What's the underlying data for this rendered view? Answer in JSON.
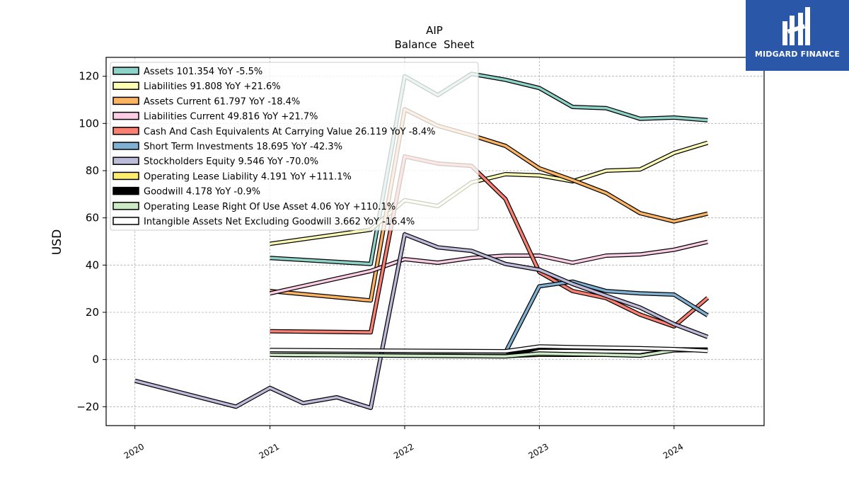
{
  "chart_data": {
    "type": "line",
    "title": "AIP",
    "subtitle": "Balance  Sheet",
    "ylabel": "USD",
    "xlabel": "",
    "x_ticks": [
      "2020",
      "2021",
      "2022",
      "2023",
      "2024"
    ],
    "y_ticks": [
      "−20",
      "0",
      "20",
      "40",
      "60",
      "80",
      "100",
      "120"
    ],
    "xlim": [
      "2019-10-15",
      "2024-09-01"
    ],
    "ylim": [
      -28,
      128
    ],
    "grid": true,
    "legend_position": "upper-left",
    "series": [
      {
        "name": "Assets  101.354 YoY -5.5%",
        "color": "#8dd3c7",
        "points": [
          [
            "2021-01-01",
            43
          ],
          [
            "2021-10-01",
            40.5
          ],
          [
            "2022-01-01",
            120
          ],
          [
            "2022-04-01",
            112
          ],
          [
            "2022-07-01",
            121
          ],
          [
            "2022-10-01",
            118.5
          ],
          [
            "2023-01-01",
            115
          ],
          [
            "2023-04-01",
            107
          ],
          [
            "2023-07-01",
            106.5
          ],
          [
            "2023-10-01",
            102
          ],
          [
            "2024-01-01",
            102.5
          ],
          [
            "2024-04-01",
            101.354
          ]
        ]
      },
      {
        "name": "Liabilities  91.808 YoY +21.6%",
        "color": "#ffffb3",
        "points": [
          [
            "2021-01-01",
            49
          ],
          [
            "2021-10-01",
            55
          ],
          [
            "2022-01-01",
            67.5
          ],
          [
            "2022-04-01",
            65
          ],
          [
            "2022-07-01",
            75
          ],
          [
            "2022-10-01",
            78.5
          ],
          [
            "2023-01-01",
            78
          ],
          [
            "2023-04-01",
            75.5
          ],
          [
            "2023-07-01",
            80
          ],
          [
            "2023-10-01",
            80.5
          ],
          [
            "2024-01-01",
            87.5
          ],
          [
            "2024-04-01",
            91.808
          ]
        ]
      },
      {
        "name": "Assets Current  61.797 YoY -18.4%",
        "color": "#fdb462",
        "points": [
          [
            "2021-01-01",
            29
          ],
          [
            "2021-10-01",
            25
          ],
          [
            "2022-01-01",
            106
          ],
          [
            "2022-04-01",
            99
          ],
          [
            "2022-07-01",
            95
          ],
          [
            "2022-10-01",
            90.5
          ],
          [
            "2023-01-01",
            81
          ],
          [
            "2023-04-01",
            76
          ],
          [
            "2023-07-01",
            70.5
          ],
          [
            "2023-10-01",
            62
          ],
          [
            "2024-01-01",
            58.5
          ],
          [
            "2024-04-01",
            61.797
          ]
        ]
      },
      {
        "name": "Liabilities Current  49.816 YoY +21.7%",
        "color": "#fccde5",
        "points": [
          [
            "2021-01-01",
            28
          ],
          [
            "2021-10-01",
            37.5
          ],
          [
            "2022-01-01",
            42.5
          ],
          [
            "2022-04-01",
            41
          ],
          [
            "2022-07-01",
            43
          ],
          [
            "2022-10-01",
            44
          ],
          [
            "2023-01-01",
            44
          ],
          [
            "2023-04-01",
            41
          ],
          [
            "2023-07-01",
            44
          ],
          [
            "2023-10-01",
            44.5
          ],
          [
            "2024-01-01",
            46.5
          ],
          [
            "2024-04-01",
            49.816
          ]
        ]
      },
      {
        "name": "Cash And Cash Equivalents At Carrying Value  26.119 YoY -8.4%",
        "color": "#fb8072",
        "points": [
          [
            "2021-01-01",
            12
          ],
          [
            "2021-10-01",
            11.5
          ],
          [
            "2022-01-01",
            86
          ],
          [
            "2022-04-01",
            83
          ],
          [
            "2022-07-01",
            82
          ],
          [
            "2022-10-01",
            68
          ],
          [
            "2023-01-01",
            37
          ],
          [
            "2023-04-01",
            29
          ],
          [
            "2023-07-01",
            26
          ],
          [
            "2023-10-01",
            19
          ],
          [
            "2024-01-01",
            14
          ],
          [
            "2024-04-01",
            26.119
          ]
        ]
      },
      {
        "name": "Short Term Investments  18.695 YoY -42.3%",
        "color": "#80b1d3",
        "points": [
          [
            "2022-10-01",
            3
          ],
          [
            "2023-01-01",
            31
          ],
          [
            "2023-04-01",
            33
          ],
          [
            "2023-07-01",
            29
          ],
          [
            "2023-10-01",
            28
          ],
          [
            "2024-01-01",
            27.5
          ],
          [
            "2024-04-01",
            18.695
          ]
        ]
      },
      {
        "name": "Stockholders Equity  9.546 YoY -70.0%",
        "color": "#bebada",
        "points": [
          [
            "2020-01-01",
            -9
          ],
          [
            "2020-10-01",
            -20
          ],
          [
            "2021-01-01",
            -12
          ],
          [
            "2021-04-01",
            -18.5
          ],
          [
            "2021-07-01",
            -16
          ],
          [
            "2021-10-01",
            -20.5
          ],
          [
            "2022-01-01",
            53
          ],
          [
            "2022-04-01",
            47.5
          ],
          [
            "2022-07-01",
            46
          ],
          [
            "2022-10-01",
            40.5
          ],
          [
            "2023-01-01",
            38
          ],
          [
            "2023-04-01",
            32
          ],
          [
            "2023-07-01",
            27
          ],
          [
            "2023-10-01",
            22
          ],
          [
            "2024-01-01",
            15
          ],
          [
            "2024-04-01",
            9.546
          ]
        ]
      },
      {
        "name": "Operating Lease Liability  4.191 YoY +111.1%",
        "color": "#ffed6f",
        "points": [
          [
            "2021-01-01",
            2
          ],
          [
            "2022-10-01",
            1.5
          ],
          [
            "2023-01-01",
            2
          ],
          [
            "2023-04-01",
            2
          ],
          [
            "2023-07-01",
            2
          ],
          [
            "2023-10-01",
            1.8
          ],
          [
            "2024-01-01",
            4
          ],
          [
            "2024-04-01",
            4.191
          ]
        ]
      },
      {
        "name": "Goodwill  4.178 YoY -0.9%",
        "color": "#000000",
        "points": [
          [
            "2021-01-01",
            2
          ],
          [
            "2022-10-01",
            1.5
          ],
          [
            "2023-01-01",
            5
          ],
          [
            "2023-04-01",
            5
          ],
          [
            "2023-07-01",
            4.8
          ],
          [
            "2023-10-01",
            4.6
          ],
          [
            "2024-01-01",
            4.3
          ],
          [
            "2024-04-01",
            4.178
          ]
        ]
      },
      {
        "name": "Operating Lease Right Of Use Asset  4.06 YoY +110.1%",
        "color": "#ccebc5",
        "points": [
          [
            "2021-01-01",
            2
          ],
          [
            "2022-10-01",
            1.3
          ],
          [
            "2023-01-01",
            2.5
          ],
          [
            "2023-04-01",
            2.2
          ],
          [
            "2023-07-01",
            2
          ],
          [
            "2023-10-01",
            1.6
          ],
          [
            "2024-01-01",
            3.9
          ],
          [
            "2024-04-01",
            4.06
          ]
        ]
      },
      {
        "name": "Intangible Assets Net Excluding Goodwill  3.662 YoY -16.4%",
        "color": "#ffffff",
        "points": [
          [
            "2021-01-01",
            4
          ],
          [
            "2022-10-01",
            3.5
          ],
          [
            "2023-01-01",
            5.5
          ],
          [
            "2023-04-01",
            5.2
          ],
          [
            "2023-07-01",
            5
          ],
          [
            "2023-10-01",
            4.8
          ],
          [
            "2024-01-01",
            4.4
          ],
          [
            "2024-04-01",
            3.662
          ]
        ]
      }
    ]
  },
  "logo": {
    "text": "MIDGARD FINANCE"
  }
}
